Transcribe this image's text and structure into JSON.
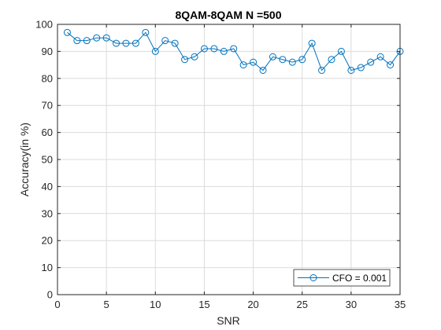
{
  "chart_data": {
    "type": "line",
    "title": "8QAM-8QAM N =500",
    "xlabel": "SNR",
    "ylabel": "Accuracy(in %)",
    "xlim": [
      0,
      35
    ],
    "ylim": [
      0,
      100
    ],
    "xticks": [
      0,
      5,
      10,
      15,
      20,
      25,
      30,
      35
    ],
    "yticks": [
      0,
      10,
      20,
      30,
      40,
      50,
      60,
      70,
      80,
      90,
      100
    ],
    "grid": true,
    "legend_position": "bottom-right",
    "series": [
      {
        "name": "CFO = 0.001",
        "color": "#0072BD",
        "marker": "circle",
        "x": [
          1,
          2,
          3,
          4,
          5,
          6,
          7,
          8,
          9,
          10,
          11,
          12,
          13,
          14,
          15,
          16,
          17,
          18,
          19,
          20,
          21,
          22,
          23,
          24,
          25,
          26,
          27,
          28,
          29,
          30,
          31,
          32,
          33,
          34,
          35
        ],
        "y": [
          97,
          94,
          94,
          95,
          95,
          93,
          93,
          93,
          97,
          90,
          94,
          93,
          87,
          88,
          91,
          91,
          90,
          91,
          85,
          86,
          83,
          88,
          87,
          86,
          87,
          93,
          83,
          87,
          90,
          83,
          84,
          86,
          88,
          85,
          90
        ]
      }
    ]
  }
}
